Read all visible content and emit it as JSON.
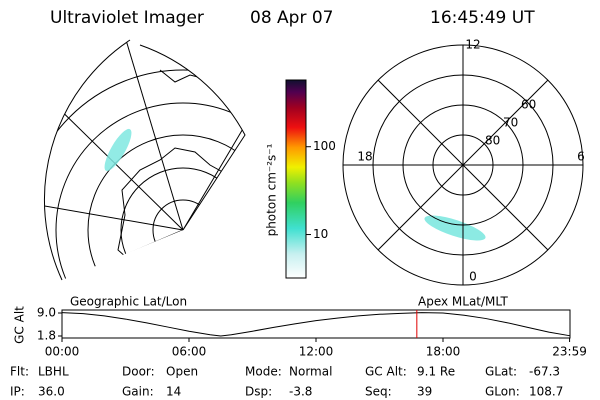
{
  "header": {
    "title": "Ultraviolet Imager",
    "date": "08 Apr 07",
    "time": "16:45:49 UT"
  },
  "colorbar": {
    "label": "photon cm⁻²s⁻¹",
    "log": true,
    "range": [
      3.2,
      575
    ],
    "ticks": [
      10,
      100
    ]
  },
  "polar": {
    "mlat_range": [
      50,
      90
    ],
    "mlat_ticks": [
      60,
      70,
      80
    ],
    "mlt_ticks": [
      0,
      6,
      12,
      18
    ]
  },
  "timeline": {
    "left_label": "Geographic Lat/Lon",
    "right_label": "Apex MLat/MLT",
    "ylabel": "GC Alt",
    "yticks": [
      {
        "value": 9,
        "label": "9.0"
      },
      1.8
    ],
    "xticks": [
      {
        "value": 0,
        "label": "00:00"
      },
      {
        "value": 6,
        "label": "06:00"
      },
      {
        "value": 12,
        "label": "12:00"
      },
      {
        "value": 18,
        "label": "18:00"
      },
      {
        "value": 23.98,
        "label": "23:59"
      }
    ],
    "xlim": [
      0,
      24
    ],
    "altitude": {
      "x": [
        0,
        1,
        2,
        3,
        4,
        5,
        6,
        7,
        7.5,
        8,
        9,
        10,
        11,
        12,
        13,
        14,
        15,
        16,
        17,
        18,
        19,
        20,
        21,
        22,
        23,
        23.98
      ],
      "values": [
        9.1,
        8.8,
        8.1,
        7.1,
        5.9,
        4.6,
        3.3,
        2.2,
        1.8,
        2.2,
        3.3,
        4.5,
        5.6,
        6.6,
        7.4,
        8.1,
        8.6,
        8.9,
        9.1,
        9.0,
        8.3,
        7.3,
        6.0,
        4.5,
        3.0,
        1.9
      ]
    }
  },
  "info": [
    [
      {
        "label": "Flt:",
        "value": "LBHL"
      },
      {
        "label": "IP:",
        "value": "36.0"
      }
    ],
    [
      {
        "label": "Door:",
        "value": "Open"
      },
      {
        "label": "Gain:",
        "value": "14"
      }
    ],
    [
      {
        "label": "Mode:",
        "value": "Normal"
      },
      {
        "label": "Dsp:",
        "value": "-3.8"
      }
    ],
    [
      {
        "label": "GC Alt:",
        "value": "9.1 Re"
      },
      {
        "label": "Seq:",
        "value": "39"
      }
    ],
    [
      {
        "label": "GLat:",
        "value": "-67.3"
      },
      {
        "label": "GLon:",
        "value": "108.7"
      }
    ]
  ]
}
